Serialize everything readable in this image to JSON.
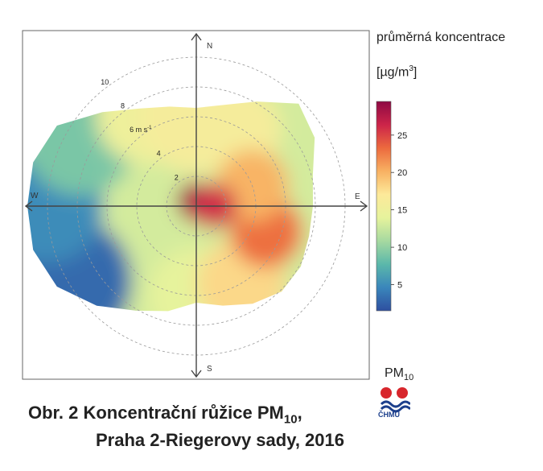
{
  "chart_data": {
    "type": "heatmap",
    "subtype": "polar-wind-rose",
    "title": "PM10",
    "radial_axis": {
      "unit_label": "6 m s^-1",
      "ticks": [
        2,
        4,
        6,
        8,
        10
      ],
      "tick_labels": [
        "2",
        "4",
        "6 m s",
        "8",
        "10"
      ]
    },
    "directions": [
      "N",
      "E",
      "S",
      "W"
    ],
    "colorbar": {
      "title": "průměrná koncentrace",
      "unit": "[µg/m",
      "unit_sup": "3",
      "unit_close": "]",
      "range": [
        1.5,
        29.5
      ],
      "ticks": [
        5,
        10,
        15,
        20,
        25
      ],
      "tick_labels": [
        "5",
        "10",
        "15",
        "20",
        "25"
      ],
      "colors": [
        "#2e4fa0",
        "#3a86bb",
        "#5bb8aa",
        "#a6d9a0",
        "#e6f39c",
        "#fde99a",
        "#f8b162",
        "#ec6a3e",
        "#cc2449",
        "#8e0a44"
      ]
    },
    "hotspots": [
      {
        "direction_deg": 0,
        "speed": 0.5,
        "value": 28
      },
      {
        "direction_deg": 110,
        "speed": 5,
        "value": 22
      },
      {
        "direction_deg": 60,
        "speed": 3,
        "value": 20
      },
      {
        "direction_deg": 250,
        "speed": 8,
        "value": 4
      },
      {
        "direction_deg": 300,
        "speed": 7,
        "value": 10
      },
      {
        "direction_deg": 340,
        "speed": 5,
        "value": 15
      },
      {
        "direction_deg": 200,
        "speed": 5,
        "value": 13
      }
    ]
  },
  "labels": {
    "north": "N",
    "east": "E",
    "south": "S",
    "west": "W",
    "pm_main": "PM",
    "pm_sub": "10",
    "logo_text": "ČHMÚ"
  },
  "caption": {
    "line1_prefix": "Obr. 2  Koncentrační růžice PM",
    "line1_sub": "10",
    "line1_suffix": ",",
    "line2": "Praha 2-Riegerovy sady, 2016"
  },
  "colors": {
    "axis": "#444444",
    "grid": "#9a9a9a",
    "frame": "#555555",
    "logo_red": "#d8262c",
    "logo_blue": "#1c3f8c"
  }
}
